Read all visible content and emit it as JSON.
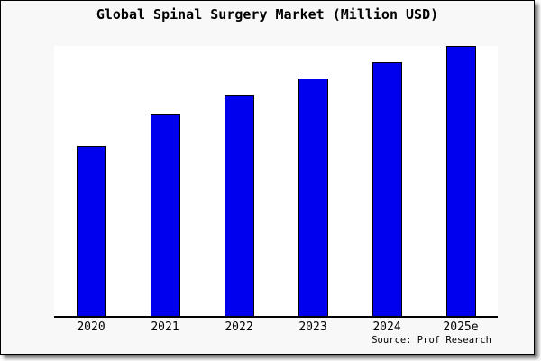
{
  "footer": {
    "source": "Source: Prof Research"
  },
  "colors": {
    "bar_fill": "#0000EE",
    "bar_border": "#000000",
    "card_background": "#F8F8F8",
    "plot_background": "#FFFFFF",
    "axis": "#000000",
    "title_text": "#000000"
  },
  "chart_data": {
    "type": "bar",
    "title": "Global Spinal Surgery Market (Million USD)",
    "categories": [
      "2020",
      "2021",
      "2022",
      "2023",
      "2024",
      "2025e"
    ],
    "values": [
      63,
      75,
      82,
      88,
      94,
      100
    ],
    "values_note": "No y-axis tick labels are shown in the chart; values are relative bar heights as a percentage of the tallest bar (2025e = 100).",
    "xlabel": "",
    "ylabel": "",
    "ylim": [
      0,
      100
    ],
    "grid": false,
    "legend": false,
    "x_axis_line": true,
    "y_axis_line": false
  }
}
